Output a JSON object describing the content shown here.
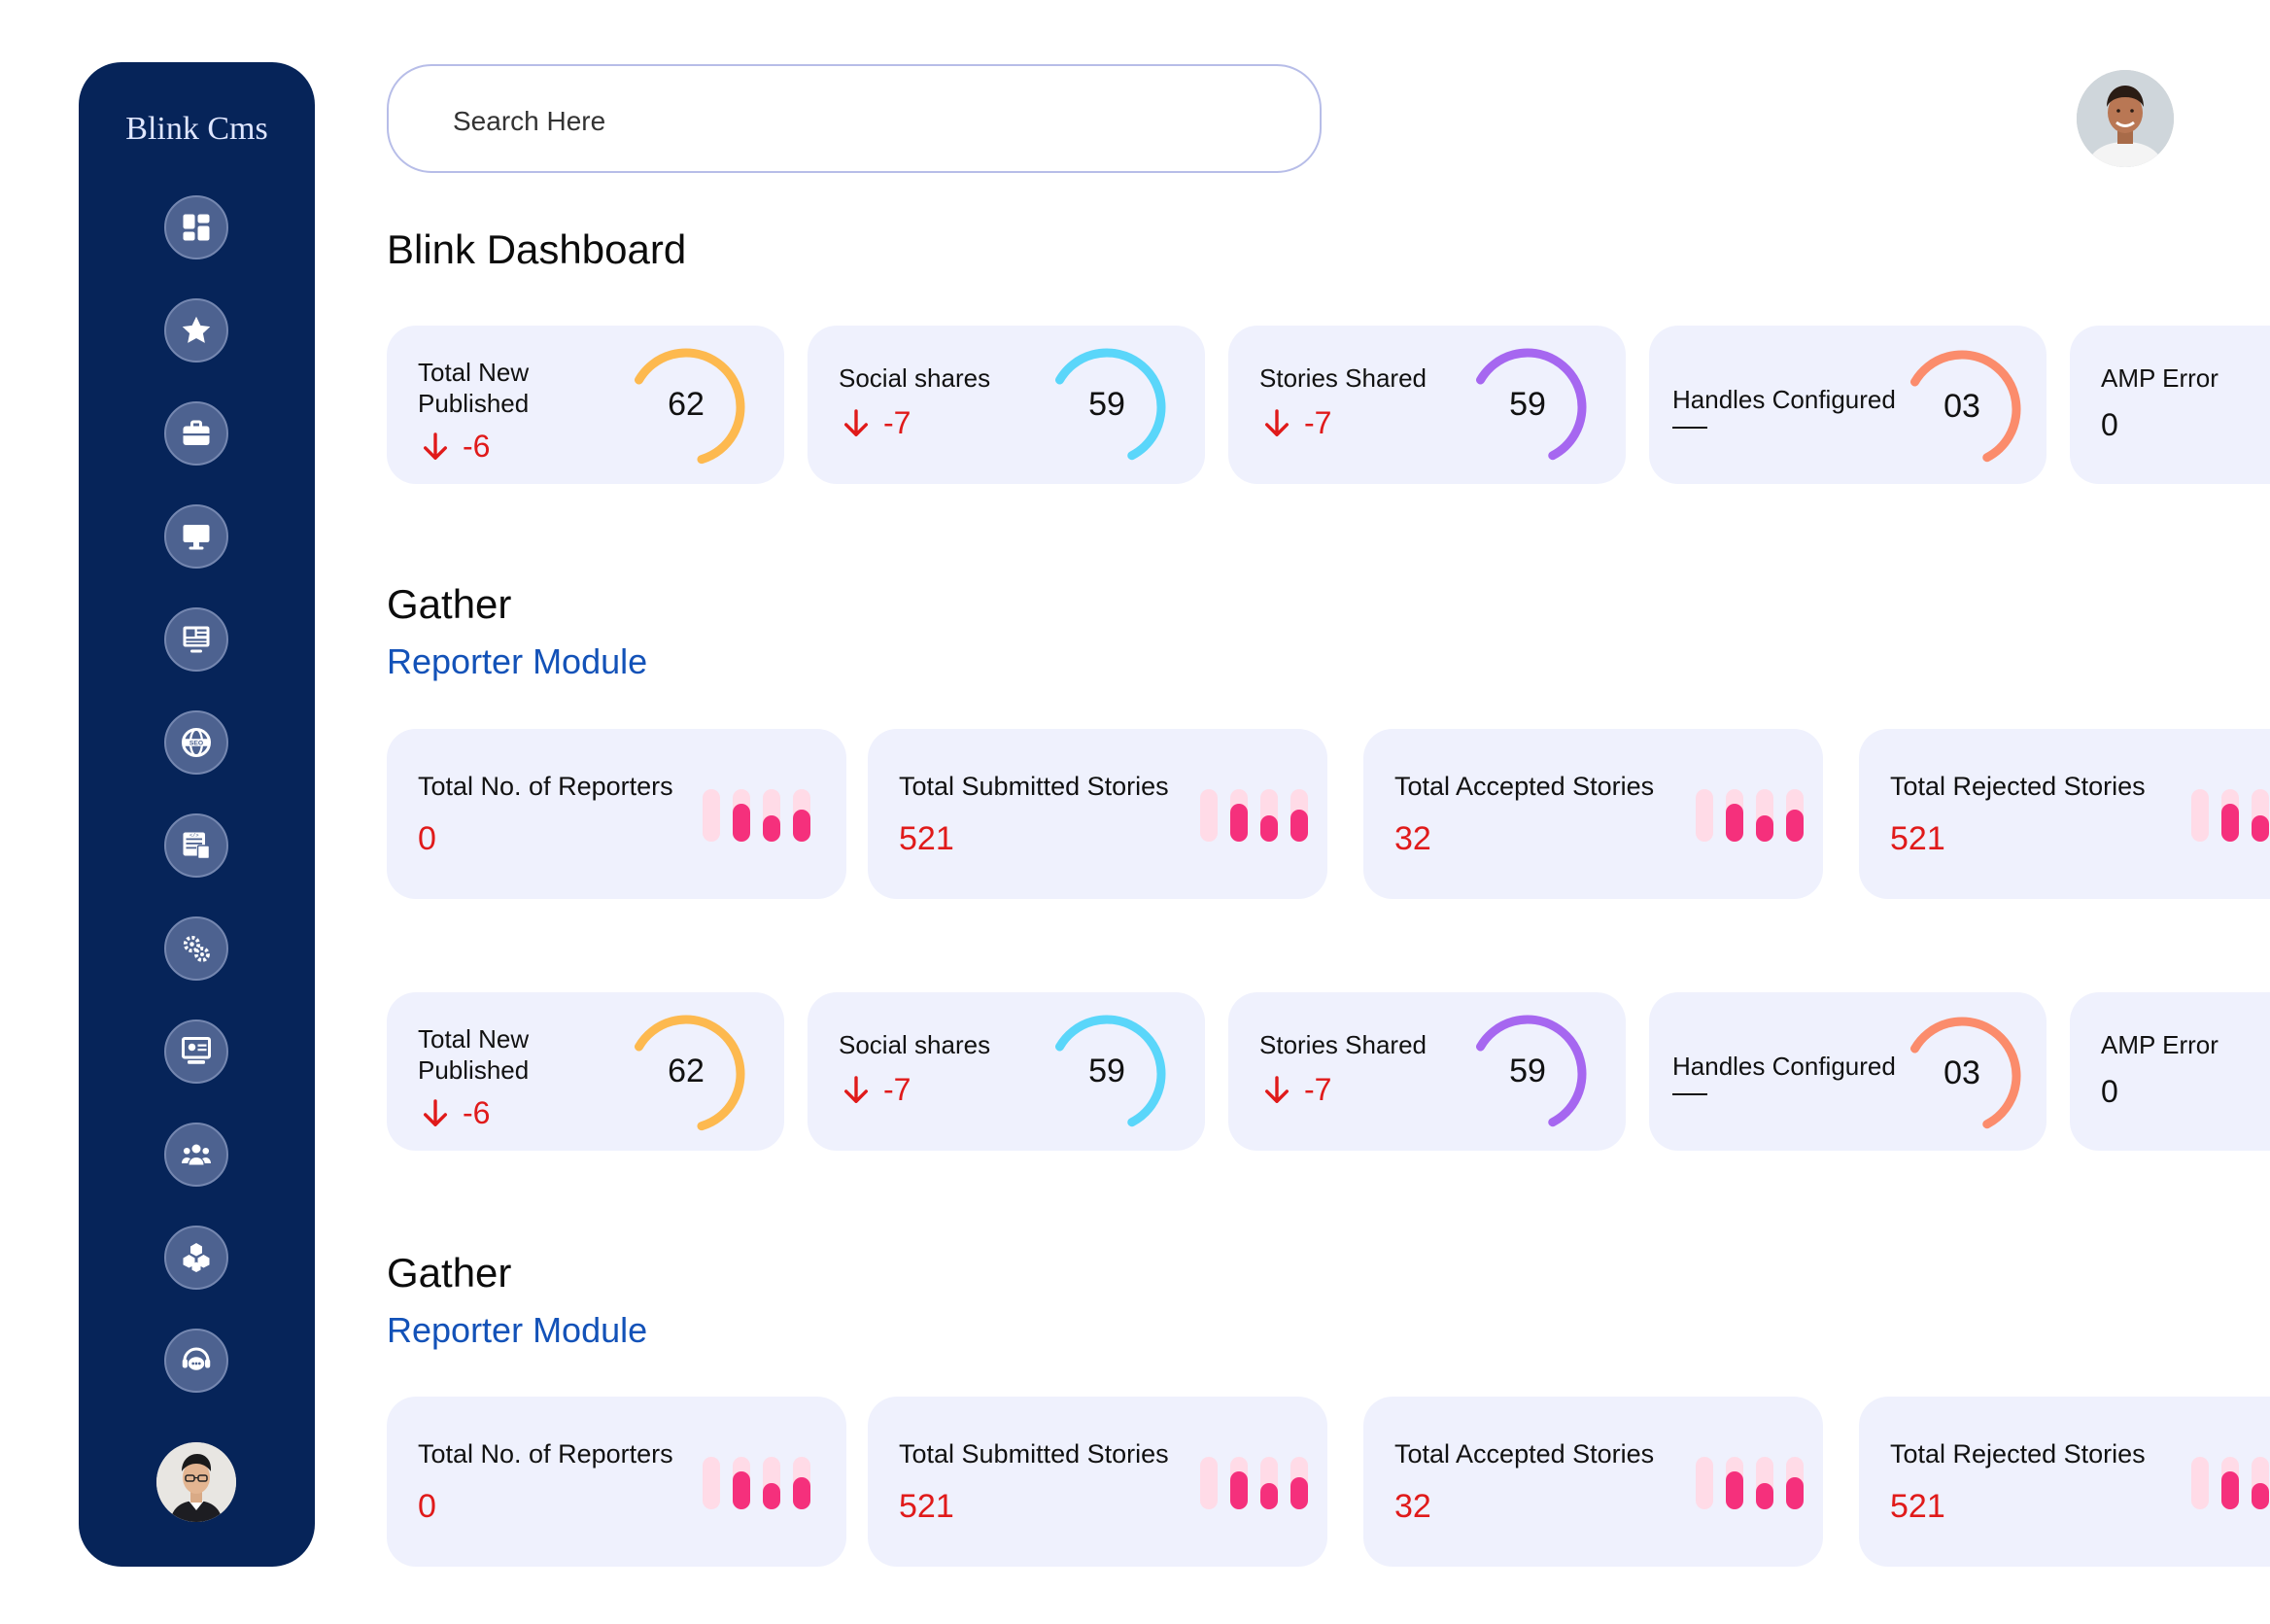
{
  "sidebar": {
    "brand": "Blink Cms",
    "items": [
      {
        "name": "dashboard-icon"
      },
      {
        "name": "star-icon"
      },
      {
        "name": "briefcase-icon"
      },
      {
        "name": "monitor-icon"
      },
      {
        "name": "news-monitor-icon"
      },
      {
        "name": "seo-globe-icon"
      },
      {
        "name": "web-code-icon"
      },
      {
        "name": "settings-gears-icon"
      },
      {
        "name": "presentation-icon"
      },
      {
        "name": "users-group-icon"
      },
      {
        "name": "boxes-icon"
      },
      {
        "name": "support-chat-icon"
      }
    ]
  },
  "search": {
    "placeholder": "Search Here"
  },
  "dashboard": {
    "title": "Blink Dashboard"
  },
  "colors": {
    "sidebar": "#062459",
    "card": "#eff1fd",
    "negative": "#e01a1a",
    "accent_blue": "#1352b8",
    "gauge_orange": "#fdb94f",
    "gauge_cyan": "#5ad6fa",
    "gauge_purple": "#a667f0",
    "gauge_salmon": "#fb8c6c",
    "bar_pink": "#f5307c"
  },
  "stats_top": [
    {
      "label": "Total New\nPublished",
      "delta": "-6",
      "value": "62",
      "progress": 0.62
    },
    {
      "label": "Social shares",
      "delta": "-7",
      "value": "59",
      "progress": 0.59
    },
    {
      "label": "Stories Shared",
      "delta": "-7",
      "value": "59",
      "progress": 0.59
    },
    {
      "label": "Handles  Configured",
      "value": "03",
      "progress": 0.59
    },
    {
      "label": "AMP Error",
      "value": "0"
    }
  ],
  "gather_top": {
    "title": "Gather",
    "subtitle": "Reporter Module"
  },
  "reporters_top": [
    {
      "label": "Total No. of Reporters",
      "value": "0"
    },
    {
      "label": "Total Submitted Stories",
      "value": "521"
    },
    {
      "label": "Total Accepted Stories",
      "value": "32"
    },
    {
      "label": "Total Rejected Stories",
      "value": "521"
    }
  ],
  "stats_bottom": [
    {
      "label": "Total New\nPublished",
      "delta": "-6",
      "value": "62",
      "progress": 0.62
    },
    {
      "label": "Social shares",
      "delta": "-7",
      "value": "59",
      "progress": 0.59
    },
    {
      "label": "Stories Shared",
      "delta": "-7",
      "value": "59",
      "progress": 0.59
    },
    {
      "label": "Handles  Configured",
      "value": "03",
      "progress": 0.59
    },
    {
      "label": "AMP Error",
      "value": "0"
    }
  ],
  "gather_bottom": {
    "title": "Gather",
    "subtitle": "Reporter Module"
  },
  "reporters_bottom": [
    {
      "label": "Total No. of Reporters",
      "value": "0"
    },
    {
      "label": "Total Submitted Stories",
      "value": "521"
    },
    {
      "label": "Total Accepted Stories",
      "value": "32"
    },
    {
      "label": "Total Rejected Stories",
      "value": "521"
    }
  ]
}
